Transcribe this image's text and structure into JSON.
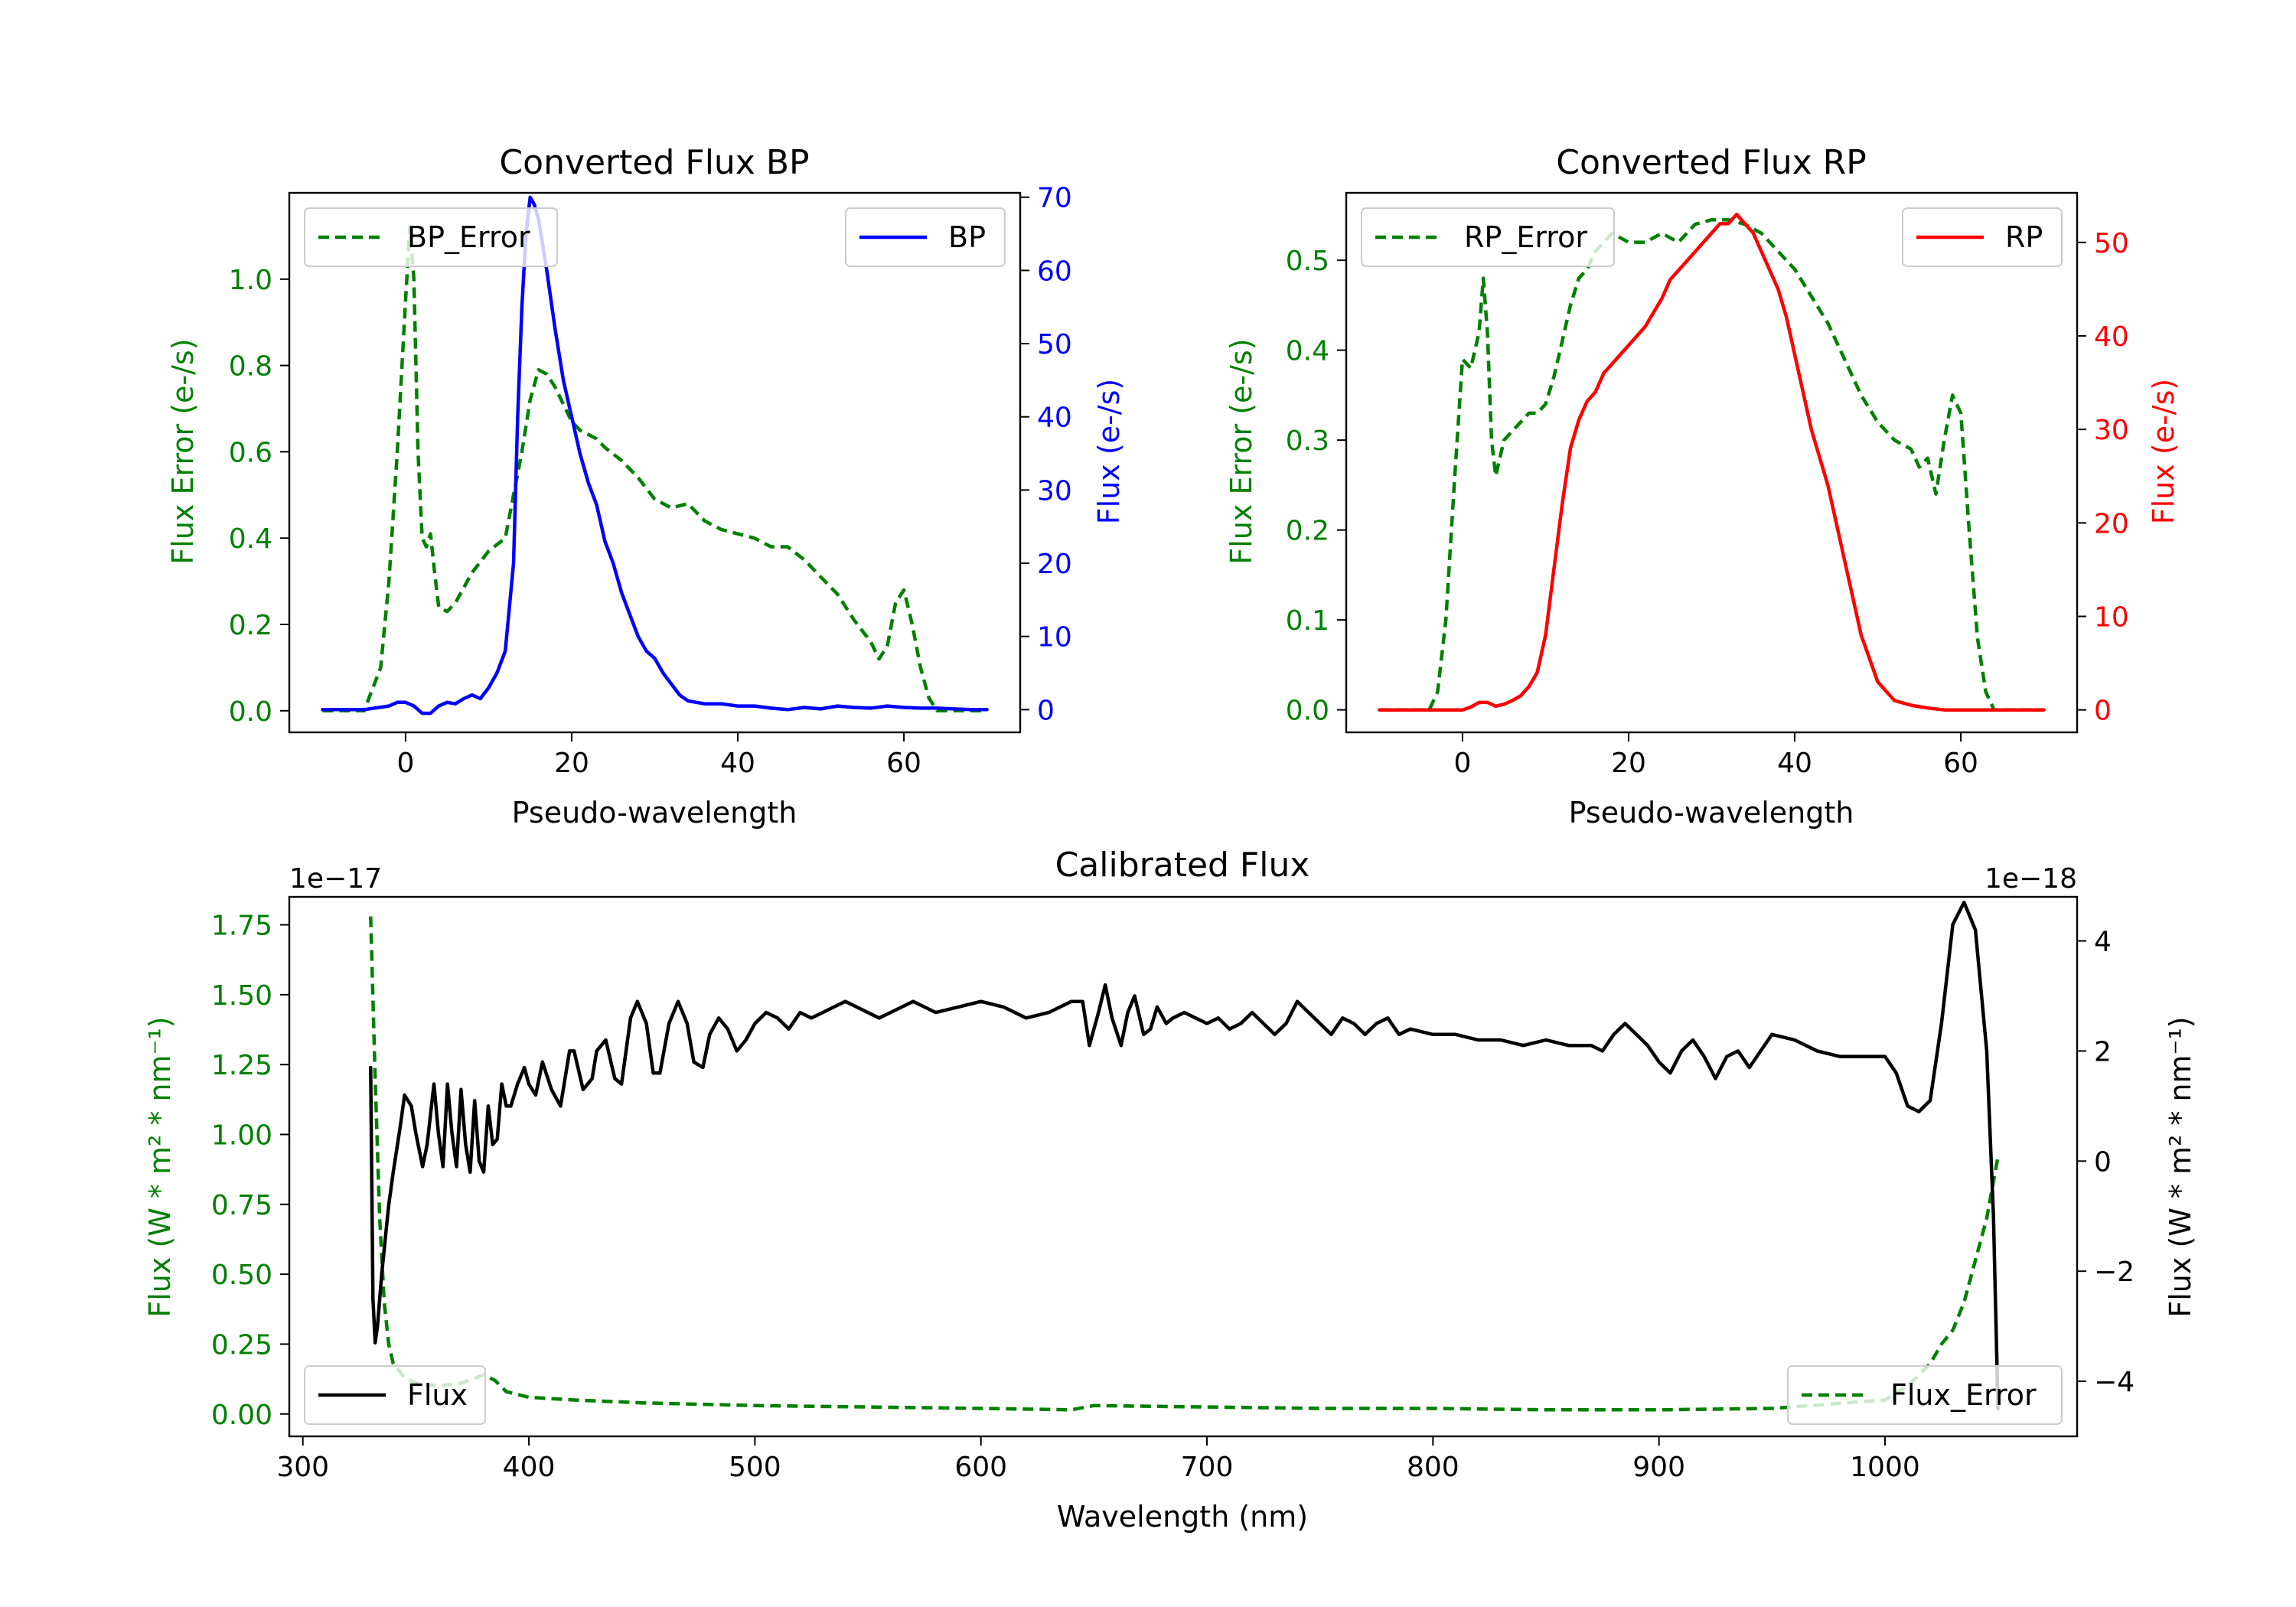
{
  "chart_data": [
    {
      "id": "bp",
      "type": "line",
      "title": "Converted Flux BP",
      "xlabel": "Pseudo-wavelength",
      "xlim": [
        -14,
        74
      ],
      "xticks": [
        0,
        20,
        40,
        60
      ],
      "left_axis": {
        "label": "Flux Error (e-/s)",
        "color": "#008000",
        "ylim": [
          -0.05,
          1.2
        ],
        "ticks": [
          "0.0",
          "0.2",
          "0.4",
          "0.6",
          "0.8",
          "1.0"
        ]
      },
      "right_axis": {
        "label": "Flux (e-/s)",
        "color": "#0000ff",
        "ylim": [
          -3.1,
          70.6
        ],
        "ticks": [
          "0",
          "10",
          "20",
          "30",
          "40",
          "50",
          "60",
          "70"
        ]
      },
      "series": [
        {
          "name": "BP_Error",
          "axis": "left",
          "color": "#008000",
          "dash": true,
          "x": [
            -10,
            -5,
            -3,
            -2,
            -1,
            0,
            0.5,
            1,
            1.5,
            2,
            2.5,
            3,
            3.5,
            4,
            5,
            6,
            8,
            10,
            12,
            13,
            14,
            15,
            16,
            17,
            18,
            19,
            20,
            21,
            22,
            23,
            24,
            26,
            28,
            30,
            32,
            34,
            36,
            38,
            40,
            42,
            44,
            46,
            48,
            50,
            52,
            54,
            56,
            57,
            58,
            59,
            60,
            61,
            62,
            63,
            64,
            66,
            68,
            70
          ],
          "values": [
            0.0,
            0.0,
            0.1,
            0.3,
            0.6,
            0.95,
            1.12,
            1.0,
            0.6,
            0.4,
            0.38,
            0.41,
            0.32,
            0.24,
            0.23,
            0.25,
            0.32,
            0.37,
            0.4,
            0.5,
            0.6,
            0.72,
            0.79,
            0.78,
            0.75,
            0.71,
            0.67,
            0.65,
            0.64,
            0.63,
            0.61,
            0.58,
            0.54,
            0.49,
            0.47,
            0.48,
            0.44,
            0.42,
            0.41,
            0.4,
            0.38,
            0.38,
            0.35,
            0.31,
            0.27,
            0.21,
            0.16,
            0.12,
            0.15,
            0.25,
            0.28,
            0.2,
            0.1,
            0.03,
            0.0,
            0.0,
            0.0,
            0.0
          ]
        },
        {
          "name": "BP",
          "axis": "right",
          "color": "#0000ff",
          "dash": false,
          "x": [
            -10,
            -5,
            -2,
            -1,
            0,
            1,
            2,
            3,
            4,
            5,
            6,
            7,
            8,
            9,
            10,
            11,
            12,
            13,
            13.5,
            14,
            14.5,
            15,
            15.5,
            16,
            17,
            18,
            19,
            20,
            21,
            22,
            23,
            24,
            25,
            26,
            27,
            28,
            29,
            30,
            31,
            32,
            33,
            34,
            35,
            36,
            38,
            40,
            42,
            44,
            46,
            48,
            50,
            52,
            54,
            56,
            58,
            60,
            62,
            64,
            66,
            68,
            70
          ],
          "values": [
            0,
            0,
            0.5,
            1,
            1,
            0.5,
            -0.5,
            -0.5,
            0.5,
            1,
            0.8,
            1.5,
            2,
            1.5,
            3,
            5,
            8,
            20,
            40,
            55,
            65,
            70,
            69,
            67,
            60,
            52,
            45,
            40,
            35,
            31,
            28,
            23,
            20,
            16,
            13,
            10,
            8,
            7,
            5,
            3.5,
            2,
            1.2,
            1,
            0.8,
            0.8,
            0.5,
            0.5,
            0.2,
            0,
            0.3,
            0.1,
            0.5,
            0.3,
            0.2,
            0.5,
            0.3,
            0.2,
            0.2,
            0.1,
            0,
            0
          ]
        }
      ],
      "legends": [
        {
          "entries": [
            "BP_Error"
          ],
          "loc": "upper left"
        },
        {
          "entries": [
            "BP"
          ],
          "loc": "upper right"
        }
      ]
    },
    {
      "id": "rp",
      "type": "line",
      "title": "Converted Flux RP",
      "xlabel": "Pseudo-wavelength",
      "xlim": [
        -14,
        74
      ],
      "xticks": [
        0,
        20,
        40,
        60
      ],
      "left_axis": {
        "label": "Flux Error (e-/s)",
        "color": "#008000",
        "ylim": [
          -0.025,
          0.575
        ],
        "ticks": [
          "0.0",
          "0.1",
          "0.2",
          "0.3",
          "0.4",
          "0.5"
        ]
      },
      "right_axis": {
        "label": "Flux (e-/s)",
        "color": "#ff0000",
        "ylim": [
          -2.4,
          55.3
        ],
        "ticks": [
          "0",
          "10",
          "20",
          "30",
          "40",
          "50"
        ]
      },
      "series": [
        {
          "name": "RP_Error",
          "axis": "left",
          "color": "#008000",
          "dash": true,
          "x": [
            -10,
            -5,
            -4,
            -3,
            -2,
            -1,
            0,
            1,
            2,
            2.5,
            3,
            3.5,
            4,
            5,
            6,
            7,
            8,
            9,
            10,
            11,
            12,
            13,
            14,
            15,
            16,
            18,
            20,
            22,
            24,
            26,
            28,
            30,
            32,
            34,
            36,
            38,
            40,
            42,
            44,
            46,
            48,
            50,
            52,
            54,
            55,
            56,
            57,
            58,
            59,
            60,
            61,
            62,
            63,
            64,
            66,
            68,
            70
          ],
          "values": [
            0.0,
            0.0,
            0.0,
            0.02,
            0.1,
            0.25,
            0.39,
            0.38,
            0.42,
            0.48,
            0.42,
            0.3,
            0.26,
            0.3,
            0.31,
            0.32,
            0.33,
            0.33,
            0.34,
            0.37,
            0.41,
            0.45,
            0.48,
            0.49,
            0.51,
            0.53,
            0.52,
            0.52,
            0.53,
            0.52,
            0.54,
            0.545,
            0.545,
            0.54,
            0.53,
            0.51,
            0.49,
            0.46,
            0.43,
            0.39,
            0.35,
            0.32,
            0.3,
            0.29,
            0.27,
            0.28,
            0.24,
            0.3,
            0.35,
            0.33,
            0.2,
            0.08,
            0.02,
            0.0,
            0.0,
            0.0,
            0.0
          ]
        },
        {
          "name": "RP",
          "axis": "right",
          "color": "#ff0000",
          "dash": false,
          "x": [
            -10,
            -5,
            -2,
            0,
            1,
            2,
            3,
            4,
            5,
            6,
            7,
            8,
            9,
            10,
            11,
            12,
            13,
            14,
            15,
            16,
            17,
            18,
            19,
            20,
            22,
            24,
            25,
            26,
            27,
            28,
            29,
            30,
            31,
            32,
            33,
            34,
            35,
            36,
            37,
            38,
            39,
            40,
            41,
            42,
            43,
            44,
            45,
            46,
            47,
            48,
            50,
            52,
            54,
            56,
            58,
            60,
            62,
            64,
            66,
            68,
            70
          ],
          "values": [
            0,
            0,
            0,
            0,
            0.3,
            0.8,
            0.8,
            0.4,
            0.6,
            1,
            1.5,
            2.5,
            4,
            8,
            15,
            22,
            28,
            31,
            33,
            34,
            36,
            37,
            38,
            39,
            41,
            44,
            46,
            47,
            48,
            49,
            50,
            51,
            52,
            52,
            53,
            52,
            51,
            49,
            47,
            45,
            42,
            38,
            34,
            30,
            27,
            24,
            20,
            16,
            12,
            8,
            3,
            1,
            0.5,
            0.2,
            0,
            0,
            0,
            0,
            0,
            0,
            0
          ]
        }
      ],
      "legends": [
        {
          "entries": [
            "RP_Error"
          ],
          "loc": "upper left"
        },
        {
          "entries": [
            "RP"
          ],
          "loc": "upper right"
        }
      ]
    },
    {
      "id": "cal",
      "type": "line",
      "title": "Calibrated Flux",
      "xlabel": "Wavelength (nm)",
      "xlim": [
        294,
        1085
      ],
      "xticks": [
        300,
        400,
        500,
        600,
        700,
        800,
        900,
        1000
      ],
      "left_axis": {
        "label": "Flux (W * m² * nm⁻¹)",
        "color": "#008000",
        "ylim": [
          -0.08,
          1.85
        ],
        "offset": "1e−17",
        "ticks": [
          "0.00",
          "0.25",
          "0.50",
          "0.75",
          "1.00",
          "1.25",
          "1.50",
          "1.75"
        ]
      },
      "right_axis": {
        "label": "Flux (W * m² * nm⁻¹)",
        "color": "#000000",
        "ylim": [
          -5.0,
          4.8
        ],
        "offset": "1e−18",
        "ticks": [
          "−4",
          "−2",
          "0",
          "2",
          "4"
        ]
      },
      "series": [
        {
          "name": "Flux_Error",
          "axis": "left",
          "color": "#008000",
          "dash": true,
          "x": [
            330,
            332,
            334,
            336,
            338,
            340,
            345,
            350,
            360,
            370,
            380,
            385,
            390,
            400,
            420,
            450,
            500,
            550,
            600,
            640,
            650,
            700,
            750,
            800,
            850,
            900,
            950,
            1000,
            1010,
            1020,
            1025,
            1030,
            1035,
            1040,
            1045,
            1050
          ],
          "values": [
            1.78,
            1.2,
            0.7,
            0.4,
            0.25,
            0.18,
            0.13,
            0.11,
            0.1,
            0.11,
            0.14,
            0.12,
            0.08,
            0.06,
            0.05,
            0.04,
            0.03,
            0.025,
            0.02,
            0.015,
            0.03,
            0.025,
            0.02,
            0.02,
            0.015,
            0.015,
            0.02,
            0.05,
            0.1,
            0.18,
            0.25,
            0.3,
            0.4,
            0.55,
            0.7,
            0.92
          ]
        },
        {
          "name": "Flux",
          "axis": "right",
          "color": "#000000",
          "dash": false,
          "x": [
            330,
            331,
            332,
            333,
            335,
            338,
            340,
            343,
            345,
            348,
            350,
            353,
            355,
            358,
            360,
            362,
            364,
            366,
            368,
            370,
            372,
            374,
            376,
            378,
            380,
            382,
            384,
            386,
            388,
            390,
            392,
            395,
            398,
            400,
            403,
            406,
            410,
            414,
            418,
            420,
            424,
            428,
            430,
            434,
            438,
            441,
            445,
            448,
            452,
            455,
            458,
            462,
            466,
            470,
            473,
            477,
            480,
            484,
            488,
            492,
            496,
            500,
            505,
            510,
            515,
            520,
            525,
            530,
            535,
            540,
            545,
            550,
            555,
            560,
            565,
            570,
            575,
            580,
            590,
            600,
            610,
            620,
            630,
            640,
            645,
            648,
            652,
            655,
            658,
            662,
            665,
            668,
            672,
            675,
            678,
            682,
            685,
            690,
            695,
            700,
            705,
            710,
            715,
            720,
            725,
            730,
            735,
            740,
            745,
            750,
            755,
            760,
            765,
            770,
            775,
            780,
            785,
            790,
            800,
            810,
            820,
            830,
            840,
            850,
            860,
            870,
            875,
            880,
            885,
            890,
            895,
            900,
            905,
            910,
            915,
            920,
            925,
            930,
            935,
            940,
            945,
            950,
            960,
            970,
            980,
            990,
            1000,
            1005,
            1010,
            1015,
            1020,
            1025,
            1030,
            1035,
            1040,
            1045,
            1048,
            1050
          ],
          "values": [
            1.7,
            -2.5,
            -3.3,
            -3.0,
            -2.0,
            -0.8,
            -0.2,
            0.6,
            1.2,
            1.0,
            0.5,
            -0.1,
            0.3,
            1.4,
            0.5,
            -0.1,
            1.4,
            0.5,
            -0.1,
            1.3,
            0.3,
            -0.2,
            1.1,
            0.0,
            -0.2,
            1.0,
            0.3,
            0.4,
            1.4,
            1.0,
            1.0,
            1.4,
            1.7,
            1.4,
            1.2,
            1.8,
            1.3,
            1.0,
            2.0,
            2.0,
            1.3,
            1.5,
            2.0,
            2.2,
            1.5,
            1.4,
            2.6,
            2.9,
            2.5,
            1.6,
            1.6,
            2.5,
            2.9,
            2.5,
            1.8,
            1.7,
            2.3,
            2.6,
            2.4,
            2.0,
            2.2,
            2.5,
            2.7,
            2.6,
            2.4,
            2.7,
            2.6,
            2.7,
            2.8,
            2.9,
            2.8,
            2.7,
            2.6,
            2.7,
            2.8,
            2.9,
            2.8,
            2.7,
            2.8,
            2.9,
            2.8,
            2.6,
            2.7,
            2.9,
            2.9,
            2.1,
            2.7,
            3.2,
            2.6,
            2.1,
            2.7,
            3.0,
            2.3,
            2.4,
            2.8,
            2.5,
            2.6,
            2.7,
            2.6,
            2.5,
            2.6,
            2.4,
            2.5,
            2.7,
            2.5,
            2.3,
            2.5,
            2.9,
            2.7,
            2.5,
            2.3,
            2.6,
            2.5,
            2.3,
            2.5,
            2.6,
            2.3,
            2.4,
            2.3,
            2.3,
            2.2,
            2.2,
            2.1,
            2.2,
            2.1,
            2.1,
            2.0,
            2.3,
            2.5,
            2.3,
            2.1,
            1.8,
            1.6,
            2.0,
            2.2,
            1.9,
            1.5,
            1.9,
            2.0,
            1.7,
            2.0,
            2.3,
            2.2,
            2.0,
            1.9,
            1.9,
            1.9,
            1.6,
            1.0,
            0.9,
            1.1,
            2.5,
            4.3,
            4.7,
            4.2,
            2.0,
            -1.0,
            -4.5
          ]
        }
      ],
      "legends": [
        {
          "entries": [
            "Flux"
          ],
          "loc": "lower left"
        },
        {
          "entries": [
            "Flux_Error"
          ],
          "loc": "lower right"
        }
      ]
    }
  ]
}
